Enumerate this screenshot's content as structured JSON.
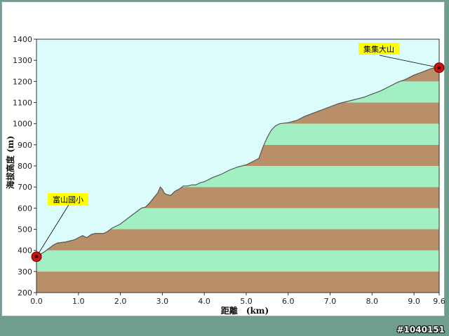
{
  "chart_data": {
    "type": "area",
    "xlabel": "距離　(km)",
    "ylabel": "海拔高度 (m)",
    "xlim": [
      0,
      9.6
    ],
    "ylim": [
      200,
      1400
    ],
    "x_ticks": [
      "0.0",
      "1.0",
      "2.0",
      "3.0",
      "4.0",
      "5.0",
      "6.0",
      "7.0",
      "8.0",
      "9.0",
      "9.6"
    ],
    "y_ticks": [
      "200",
      "300",
      "400",
      "500",
      "600",
      "700",
      "800",
      "900",
      "1000",
      "1100",
      "1200",
      "1300",
      "1400"
    ],
    "profile": {
      "x": [
        0.0,
        0.2,
        0.4,
        0.5,
        0.7,
        0.9,
        1.1,
        1.2,
        1.3,
        1.4,
        1.6,
        1.7,
        1.8,
        2.0,
        2.2,
        2.4,
        2.5,
        2.6,
        2.7,
        2.8,
        2.9,
        2.95,
        3.0,
        3.05,
        3.1,
        3.2,
        3.3,
        3.4,
        3.5,
        3.6,
        3.7,
        3.8,
        3.9,
        4.0,
        4.2,
        4.4,
        4.6,
        4.8,
        5.0,
        5.2,
        5.3,
        5.4,
        5.5,
        5.6,
        5.7,
        5.8,
        6.0,
        6.2,
        6.4,
        6.6,
        6.8,
        7.0,
        7.2,
        7.4,
        7.6,
        7.8,
        8.0,
        8.2,
        8.4,
        8.6,
        8.8,
        9.0,
        9.2,
        9.4,
        9.5,
        9.6
      ],
      "y": [
        370,
        395,
        425,
        435,
        440,
        450,
        470,
        460,
        475,
        480,
        480,
        490,
        505,
        525,
        555,
        585,
        600,
        605,
        625,
        650,
        675,
        700,
        690,
        670,
        665,
        660,
        680,
        690,
        705,
        705,
        710,
        710,
        720,
        725,
        745,
        760,
        780,
        795,
        805,
        825,
        835,
        890,
        935,
        970,
        990,
        1000,
        1005,
        1015,
        1035,
        1050,
        1065,
        1080,
        1095,
        1105,
        1115,
        1125,
        1140,
        1155,
        1175,
        1195,
        1210,
        1230,
        1245,
        1260,
        1265,
        1265
      ]
    },
    "bands": [
      {
        "from": 200,
        "to": 300,
        "color": "#b88f68"
      },
      {
        "from": 300,
        "to": 400,
        "color": "#a3efc4"
      },
      {
        "from": 400,
        "to": 500,
        "color": "#b88f68"
      },
      {
        "from": 500,
        "to": 600,
        "color": "#a3efc4"
      },
      {
        "from": 600,
        "to": 700,
        "color": "#b88f68"
      },
      {
        "from": 700,
        "to": 800,
        "color": "#a3efc4"
      },
      {
        "from": 800,
        "to": 900,
        "color": "#b88f68"
      },
      {
        "from": 900,
        "to": 1000,
        "color": "#a3efc4"
      },
      {
        "from": 1000,
        "to": 1100,
        "color": "#b88f68"
      },
      {
        "from": 1100,
        "to": 1200,
        "color": "#a3efc4"
      },
      {
        "from": 1200,
        "to": 1300,
        "color": "#b88f68"
      }
    ],
    "annotations": [
      {
        "text": "富山國小",
        "x": 0.0,
        "y": 370
      },
      {
        "text": "集集大山",
        "x": 9.6,
        "y": 1265
      }
    ],
    "sky_color": "#dcfcfc",
    "marker_color": "#cc1111",
    "callout_color": "#ffff00"
  },
  "watermark": "#1040151"
}
